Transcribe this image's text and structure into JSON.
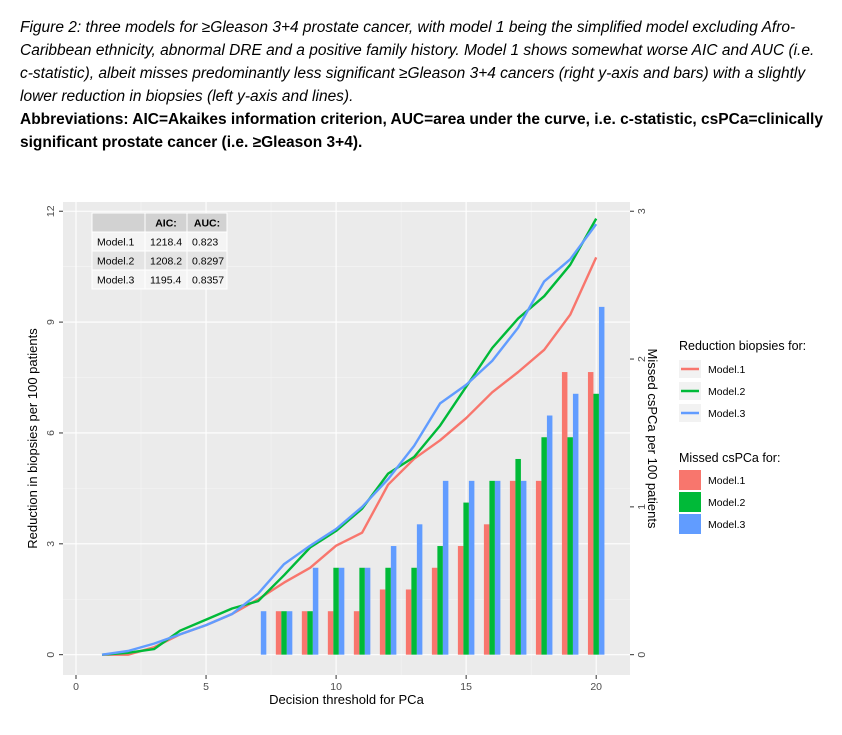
{
  "caption": {
    "italic": "Figure 2: three models for ≥Gleason 3+4 prostate cancer, with model 1 being the simplified model excluding Afro-Caribbean ethnicity, abnormal DRE and a positive family history. Model 1 shows somewhat worse AIC and AUC (i.e. c-statistic), albeit misses predominantly less significant ≥Gleason 3+4 cancers (right y-axis and bars) with a slightly lower reduction in biopsies (left y-axis and lines).",
    "bold": "Abbreviations: AIC=Akaikes information criterion, AUC=area under the curve, i.e. c-statistic, csPCa=clinically significant prostate cancer (i.e. ≥Gleason 3+4)."
  },
  "chart_data": {
    "type": "line",
    "xlabel": "Decision threshold for PCa",
    "ylabel": "Reduction in biopsies per 100 patients",
    "y2label": "Missed csPCa per 100 patients",
    "xlim": [
      -0.5,
      21.3
    ],
    "ylim": [
      -0.55,
      12.25
    ],
    "y2lim": [
      -0.1375,
      3.0625
    ],
    "x_ticks": [
      0,
      5,
      10,
      15,
      20
    ],
    "y_ticks": [
      0,
      3,
      6,
      9,
      12
    ],
    "y2_ticks": [
      0,
      1,
      2,
      3
    ],
    "grid": true,
    "legend_placement": "right",
    "x": [
      1,
      2,
      3,
      4,
      5,
      6,
      7,
      8,
      9,
      10,
      11,
      12,
      13,
      14,
      15,
      16,
      17,
      18,
      19,
      20
    ],
    "lines_legend_title": "Reduction biopsies for:",
    "bars_legend_title": "Missed csPCa for:",
    "series": [
      {
        "name": "Model.1",
        "color": "#F8766D",
        "line": [
          0.0,
          0.0,
          0.2,
          0.55,
          0.8,
          1.1,
          1.5,
          1.95,
          2.35,
          2.95,
          3.3,
          4.6,
          5.3,
          5.8,
          6.4,
          7.1,
          7.65,
          8.25,
          9.2,
          10.75
        ],
        "bars": [
          0,
          0,
          0,
          0,
          0,
          0,
          0,
          0.294,
          0.294,
          0.294,
          0.294,
          0.441,
          0.441,
          0.588,
          0.735,
          0.882,
          1.176,
          1.176,
          1.912,
          1.912
        ]
      },
      {
        "name": "Model.2",
        "color": "#00BA38",
        "line": [
          0.0,
          0.05,
          0.15,
          0.65,
          0.95,
          1.25,
          1.45,
          2.15,
          2.9,
          3.35,
          3.95,
          4.9,
          5.35,
          6.2,
          7.25,
          8.3,
          9.1,
          9.7,
          10.55,
          11.8
        ],
        "bars": [
          0,
          0,
          0,
          0,
          0,
          0,
          0,
          0.294,
          0.294,
          0.588,
          0.588,
          0.588,
          0.588,
          0.735,
          1.029,
          1.176,
          1.324,
          1.471,
          1.471,
          1.765
        ]
      },
      {
        "name": "Model.3",
        "color": "#619CFF",
        "line": [
          0.0,
          0.1,
          0.3,
          0.55,
          0.8,
          1.1,
          1.65,
          2.45,
          2.95,
          3.4,
          4.0,
          4.75,
          5.65,
          6.8,
          7.3,
          7.95,
          8.85,
          10.1,
          10.7,
          11.65
        ],
        "bars": [
          0,
          0,
          0,
          0,
          0,
          0,
          0.294,
          0.294,
          0.588,
          0.588,
          0.588,
          0.735,
          0.882,
          1.176,
          1.176,
          1.176,
          1.176,
          1.618,
          1.765,
          2.353
        ]
      }
    ],
    "table": {
      "headers": [
        "",
        "AIC:",
        "AUC:"
      ],
      "rows": [
        [
          "Model.1",
          "1218.4",
          "0.823"
        ],
        [
          "Model.2",
          "1208.2",
          "0.8297"
        ],
        [
          "Model.3",
          "1195.4",
          "0.8357"
        ]
      ]
    }
  }
}
